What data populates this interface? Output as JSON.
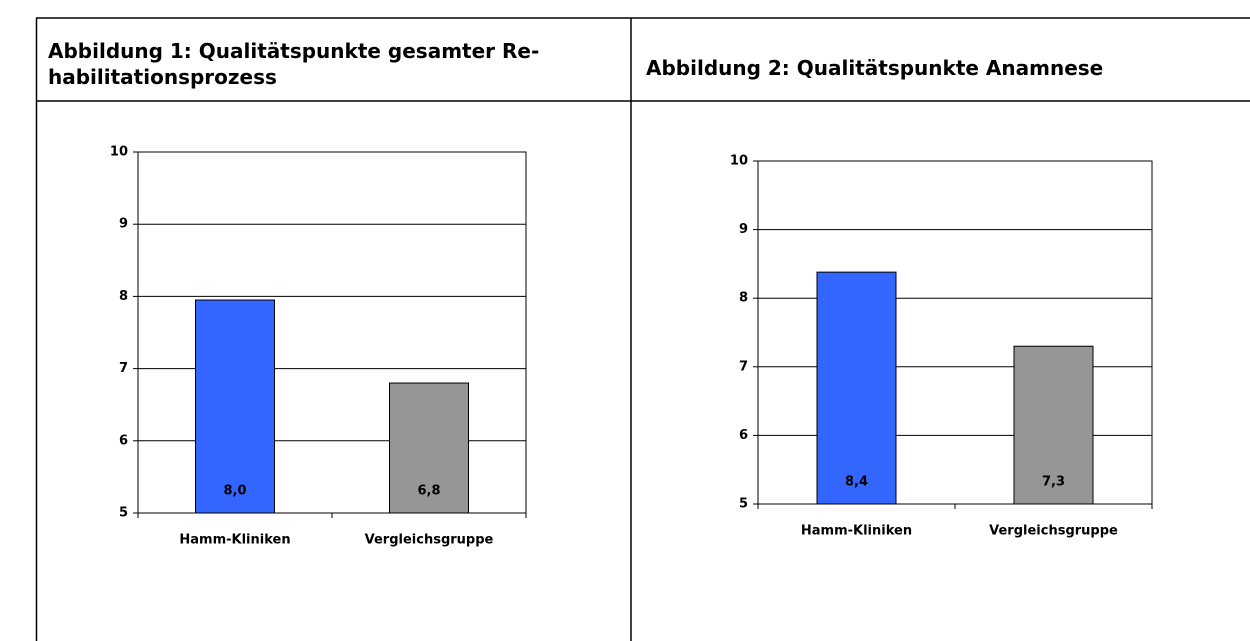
{
  "chart_data": [
    {
      "type": "bar",
      "title": "Abbildung 1: Qualitätspunkte gesamter Re-habilitationsprozess",
      "categories": [
        "Hamm-Kliniken",
        "Vergleichsgruppe"
      ],
      "values": [
        7.95,
        6.8
      ],
      "value_labels": [
        "8,0",
        "6,8"
      ],
      "colors": [
        "#3366ff",
        "#969696"
      ],
      "ylim": [
        5,
        10
      ],
      "yticks": [
        5,
        6,
        7,
        8,
        9,
        10
      ],
      "grid": true
    },
    {
      "type": "bar",
      "title": "Abbildung 2: Qualitätspunkte Anamnese",
      "categories": [
        "Hamm-Kliniken",
        "Vergleichsgruppe"
      ],
      "values": [
        8.38,
        7.3
      ],
      "value_labels": [
        "8,4",
        "7,3"
      ],
      "colors": [
        "#3366ff",
        "#969696"
      ],
      "ylim": [
        5,
        10
      ],
      "yticks": [
        5,
        6,
        7,
        8,
        9,
        10
      ],
      "grid": true
    }
  ]
}
